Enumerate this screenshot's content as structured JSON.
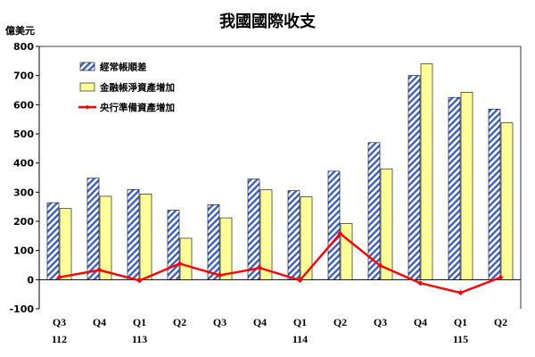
{
  "chart_data": {
    "type": "bar",
    "title": "我國國際收支",
    "unit_label": "億美元",
    "ylim": [
      -100,
      800
    ],
    "yticks": [
      -100,
      0,
      100,
      200,
      300,
      400,
      500,
      600,
      700,
      800
    ],
    "categories": [
      "Q3",
      "Q4",
      "Q1",
      "Q2",
      "Q3",
      "Q4",
      "Q1",
      "Q2",
      "Q3",
      "Q4",
      "Q1",
      "Q2"
    ],
    "year_labels": [
      {
        "label": "112",
        "index": 0
      },
      {
        "label": "113",
        "index": 2
      },
      {
        "label": "114",
        "index": 6
      },
      {
        "label": "115",
        "index": 10
      }
    ],
    "legend_position": "top-left",
    "series": [
      {
        "name": "經常帳順差",
        "kind": "bar",
        "pattern": "hatch-blue",
        "values": [
          264,
          348,
          309,
          238,
          257,
          345,
          305,
          372,
          470,
          700,
          625,
          585
        ]
      },
      {
        "name": "金融帳淨資產增加",
        "kind": "bar",
        "pattern": "solid-yellow",
        "values": [
          244,
          286,
          294,
          142,
          212,
          308,
          284,
          193,
          380,
          740,
          643,
          538
        ]
      },
      {
        "name": "央行準備資產增加",
        "kind": "line",
        "values": [
          8,
          33,
          -3,
          55,
          15,
          40,
          -2,
          158,
          48,
          -12,
          -45,
          8
        ]
      }
    ],
    "colors": {
      "hatch_stripe": "#3a5fcd",
      "hatch_bg": "#ffffff",
      "bar_yellow": "#ffff99",
      "bar_border": "#000000",
      "line": "#ff0000",
      "axis": "#000000"
    }
  }
}
